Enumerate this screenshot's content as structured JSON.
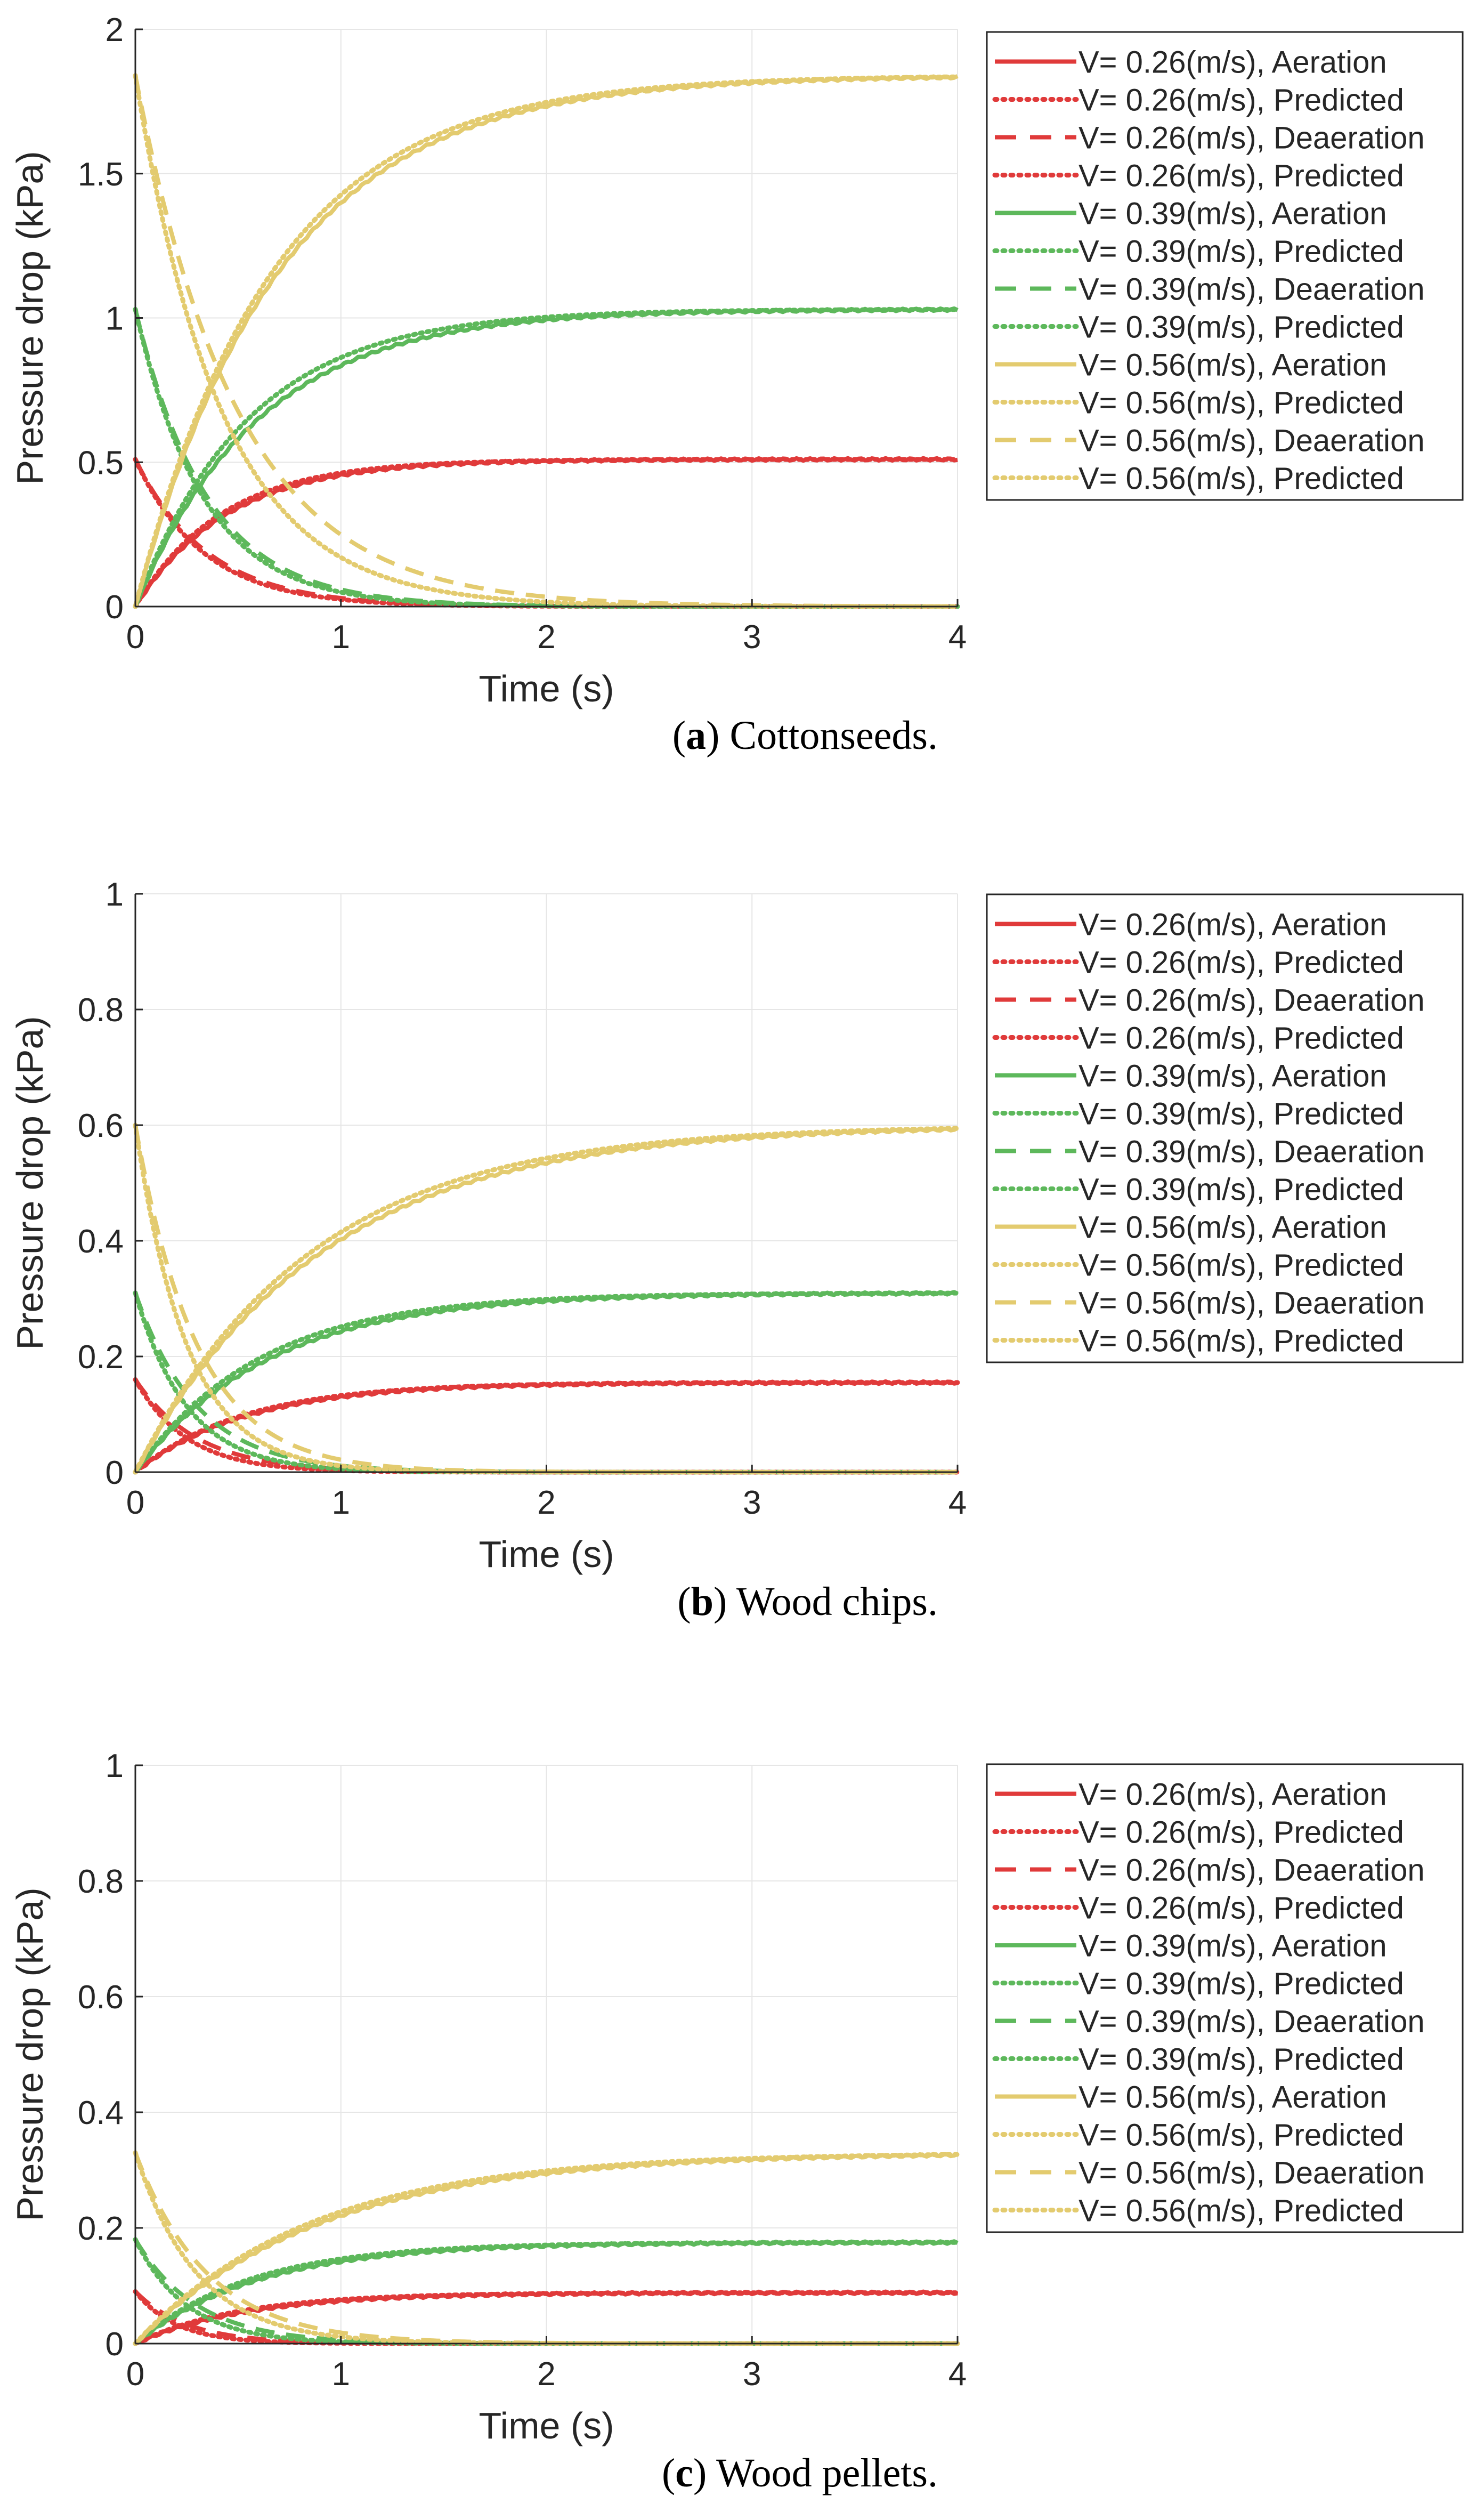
{
  "colors": {
    "red": "#E03A3A",
    "green": "#5DB85B",
    "yellow": "#E3CB6F",
    "grid": "#E6E6E6",
    "axis": "#262626",
    "text": "#262626"
  },
  "legend": {
    "entries": [
      {
        "label": "V= 0.26(m/s), Aeration",
        "color": "red",
        "style": "solid"
      },
      {
        "label": "V= 0.26(m/s), Predicted",
        "color": "red",
        "style": "dotted"
      },
      {
        "label": "V= 0.26(m/s), Deaeration",
        "color": "red",
        "style": "dashed"
      },
      {
        "label": "V= 0.26(m/s), Predicted",
        "color": "red",
        "style": "dotted"
      },
      {
        "label": "V= 0.39(m/s), Aeration",
        "color": "green",
        "style": "solid"
      },
      {
        "label": "V= 0.39(m/s), Predicted",
        "color": "green",
        "style": "dotted"
      },
      {
        "label": "V= 0.39(m/s), Deaeration",
        "color": "green",
        "style": "dashed"
      },
      {
        "label": "V= 0.39(m/s), Predicted",
        "color": "green",
        "style": "dotted"
      },
      {
        "label": "V= 0.56(m/s), Aeration",
        "color": "yellow",
        "style": "solid"
      },
      {
        "label": "V= 0.56(m/s), Predicted",
        "color": "yellow",
        "style": "dotted"
      },
      {
        "label": "V= 0.56(m/s), Deaeration",
        "color": "yellow",
        "style": "dashed"
      },
      {
        "label": "V= 0.56(m/s), Predicted",
        "color": "yellow",
        "style": "dotted"
      }
    ]
  },
  "chart_data": [
    {
      "type": "line",
      "caption_letter": "a",
      "caption_text": " Cottonseeds.",
      "xlabel": "Time (s)",
      "ylabel": "Pressure drop (kPa)",
      "xlim": [
        0,
        4
      ],
      "ylim": [
        0,
        2
      ],
      "xticks": [
        "0",
        "1",
        "2",
        "3",
        "4"
      ],
      "yticks": [
        "0",
        "0.5",
        "1",
        "1.5",
        "2"
      ],
      "yticks_values": [
        0,
        0.5,
        1,
        1.5,
        2
      ],
      "grid": true,
      "legend_position": "outside-right",
      "series": [
        {
          "name": "V= 0.26(m/s), Aeration",
          "color": "red",
          "style": "solid",
          "kind": "aeration",
          "final": 0.51,
          "tau": 0.45
        },
        {
          "name": "V= 0.26(m/s), Predicted",
          "color": "red",
          "style": "dotted",
          "kind": "aeration",
          "final": 0.51,
          "tau": 0.42
        },
        {
          "name": "V= 0.26(m/s), Deaeration",
          "color": "red",
          "style": "dashed",
          "kind": "deaeration",
          "initial": 0.51,
          "tau": 0.35
        },
        {
          "name": "V= 0.26(m/s), Predicted",
          "color": "red",
          "style": "dotted",
          "kind": "deaeration",
          "initial": 0.51,
          "tau": 0.33
        },
        {
          "name": "V= 0.39(m/s), Aeration",
          "color": "green",
          "style": "solid",
          "kind": "aeration",
          "final": 1.03,
          "tau": 0.6
        },
        {
          "name": "V= 0.39(m/s), Predicted",
          "color": "green",
          "style": "dotted",
          "kind": "aeration",
          "final": 1.03,
          "tau": 0.55
        },
        {
          "name": "V= 0.39(m/s), Deaeration",
          "color": "green",
          "style": "dashed",
          "kind": "deaeration",
          "initial": 1.03,
          "tau": 0.35
        },
        {
          "name": "V= 0.39(m/s), Predicted",
          "color": "green",
          "style": "dotted",
          "kind": "deaeration",
          "initial": 1.03,
          "tau": 0.33
        },
        {
          "name": "V= 0.56(m/s), Aeration",
          "color": "yellow",
          "style": "solid",
          "kind": "aeration",
          "final": 1.84,
          "tau": 0.7
        },
        {
          "name": "V= 0.56(m/s), Predicted",
          "color": "yellow",
          "style": "dotted",
          "kind": "aeration",
          "final": 1.84,
          "tau": 0.67
        },
        {
          "name": "V= 0.56(m/s), Deaeration",
          "color": "yellow",
          "style": "dashed",
          "kind": "deaeration",
          "initial": 1.84,
          "tau": 0.5
        },
        {
          "name": "V= 0.56(m/s), Predicted",
          "color": "yellow",
          "style": "dotted",
          "kind": "deaeration",
          "initial": 1.84,
          "tau": 0.42
        }
      ]
    },
    {
      "type": "line",
      "caption_letter": "b",
      "caption_text": " Wood chips.",
      "xlabel": "Time (s)",
      "ylabel": "Pressure drop (kPa)",
      "xlim": [
        0,
        4
      ],
      "ylim": [
        0,
        1
      ],
      "xticks": [
        "0",
        "1",
        "2",
        "3",
        "4"
      ],
      "yticks": [
        "0",
        "0.2",
        "0.4",
        "0.6",
        "0.8",
        "1"
      ],
      "yticks_values": [
        0,
        0.2,
        0.4,
        0.6,
        0.8,
        1
      ],
      "grid": true,
      "legend_position": "outside-right",
      "series": [
        {
          "name": "V= 0.26(m/s), Aeration",
          "color": "red",
          "style": "solid",
          "kind": "aeration",
          "final": 0.155,
          "tau": 0.55
        },
        {
          "name": "V= 0.26(m/s), Predicted",
          "color": "red",
          "style": "dotted",
          "kind": "aeration",
          "final": 0.155,
          "tau": 0.52
        },
        {
          "name": "V= 0.26(m/s), Deaeration",
          "color": "red",
          "style": "dashed",
          "kind": "deaeration",
          "initial": 0.16,
          "tau": 0.3
        },
        {
          "name": "V= 0.26(m/s), Predicted",
          "color": "red",
          "style": "dotted",
          "kind": "deaeration",
          "initial": 0.16,
          "tau": 0.25
        },
        {
          "name": "V= 0.39(m/s), Aeration",
          "color": "green",
          "style": "solid",
          "kind": "aeration",
          "final": 0.31,
          "tau": 0.65
        },
        {
          "name": "V= 0.39(m/s), Predicted",
          "color": "green",
          "style": "dotted",
          "kind": "aeration",
          "final": 0.31,
          "tau": 0.6
        },
        {
          "name": "V= 0.39(m/s), Deaeration",
          "color": "green",
          "style": "dashed",
          "kind": "deaeration",
          "initial": 0.31,
          "tau": 0.3
        },
        {
          "name": "V= 0.39(m/s), Predicted",
          "color": "green",
          "style": "dotted",
          "kind": "deaeration",
          "initial": 0.31,
          "tau": 0.25
        },
        {
          "name": "V= 0.56(m/s), Aeration",
          "color": "yellow",
          "style": "solid",
          "kind": "aeration",
          "final": 0.6,
          "tau": 0.9
        },
        {
          "name": "V= 0.56(m/s), Predicted",
          "color": "yellow",
          "style": "dotted",
          "kind": "aeration",
          "final": 0.6,
          "tau": 0.85
        },
        {
          "name": "V= 0.56(m/s), Deaeration",
          "color": "yellow",
          "style": "dashed",
          "kind": "deaeration",
          "initial": 0.6,
          "tau": 0.3
        },
        {
          "name": "V= 0.56(m/s), Predicted",
          "color": "yellow",
          "style": "dotted",
          "kind": "deaeration",
          "initial": 0.6,
          "tau": 0.25
        }
      ]
    },
    {
      "type": "line",
      "caption_letter": "c",
      "caption_text": " Wood pellets.",
      "xlabel": "Time (s)",
      "ylabel": "Pressure drop (kPa)",
      "xlim": [
        0,
        4
      ],
      "ylim": [
        0,
        1
      ],
      "xticks": [
        "0",
        "1",
        "2",
        "3",
        "4"
      ],
      "yticks": [
        "0",
        "0.2",
        "0.4",
        "0.6",
        "0.8",
        "1"
      ],
      "yticks_values": [
        0,
        0.2,
        0.4,
        0.6,
        0.8,
        1
      ],
      "grid": true,
      "legend_position": "outside-right",
      "series": [
        {
          "name": "V= 0.26(m/s), Aeration",
          "color": "red",
          "style": "solid",
          "kind": "aeration",
          "final": 0.088,
          "tau": 0.55
        },
        {
          "name": "V= 0.26(m/s), Predicted",
          "color": "red",
          "style": "dotted",
          "kind": "aeration",
          "final": 0.088,
          "tau": 0.5
        },
        {
          "name": "V= 0.26(m/s), Deaeration",
          "color": "red",
          "style": "dashed",
          "kind": "deaeration",
          "initial": 0.09,
          "tau": 0.25
        },
        {
          "name": "V= 0.26(m/s), Predicted",
          "color": "red",
          "style": "dotted",
          "kind": "deaeration",
          "initial": 0.09,
          "tau": 0.2
        },
        {
          "name": "V= 0.39(m/s), Aeration",
          "color": "green",
          "style": "solid",
          "kind": "aeration",
          "final": 0.175,
          "tau": 0.6
        },
        {
          "name": "V= 0.39(m/s), Predicted",
          "color": "green",
          "style": "dotted",
          "kind": "aeration",
          "final": 0.175,
          "tau": 0.55
        },
        {
          "name": "V= 0.39(m/s), Deaeration",
          "color": "green",
          "style": "dashed",
          "kind": "deaeration",
          "initial": 0.18,
          "tau": 0.3
        },
        {
          "name": "V= 0.39(m/s), Predicted",
          "color": "green",
          "style": "dotted",
          "kind": "deaeration",
          "initial": 0.18,
          "tau": 0.25
        },
        {
          "name": "V= 0.56(m/s), Aeration",
          "color": "yellow",
          "style": "solid",
          "kind": "aeration",
          "final": 0.33,
          "tau": 0.9
        },
        {
          "name": "V= 0.56(m/s), Predicted",
          "color": "yellow",
          "style": "dotted",
          "kind": "aeration",
          "final": 0.33,
          "tau": 0.85
        },
        {
          "name": "V= 0.56(m/s), Deaeration",
          "color": "yellow",
          "style": "dashed",
          "kind": "deaeration",
          "initial": 0.33,
          "tau": 0.35
        },
        {
          "name": "V= 0.56(m/s), Predicted",
          "color": "yellow",
          "style": "dotted",
          "kind": "deaeration",
          "initial": 0.33,
          "tau": 0.3
        }
      ]
    }
  ]
}
